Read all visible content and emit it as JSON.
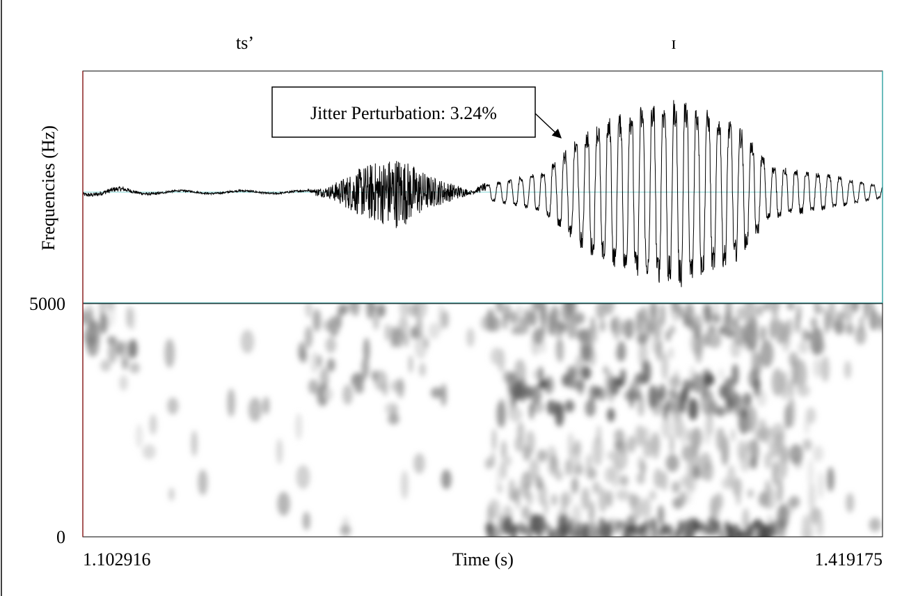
{
  "chart_data": {
    "type": "waveform_spectrogram",
    "segments": [
      {
        "label": "ts’",
        "time": 1.155
      },
      {
        "label": "ɪ",
        "time": 1.34
      }
    ],
    "annotation": {
      "text": "Jitter Perturbation: 3.24%",
      "arrow_target_time": 1.292
    },
    "ylabel": "Frequencies (Hz)",
    "xlabel": "Time (s)",
    "xlim": [
      1.102916,
      1.419175
    ],
    "x_start_label": "1.102916",
    "x_end_label": "1.419175",
    "ylim": [
      0,
      5000
    ],
    "y_ticks": [
      {
        "label": "5000",
        "value": 5000
      },
      {
        "label": "0",
        "value": 0
      }
    ],
    "waveform_envelope": [
      {
        "t": 1.1029,
        "amp": 0.04
      },
      {
        "t": 1.118,
        "amp": 0.05
      },
      {
        "t": 1.125,
        "amp": 0.03
      },
      {
        "t": 1.14,
        "amp": 0.02
      },
      {
        "t": 1.19,
        "amp": 0.02
      },
      {
        "t": 1.2,
        "amp": 0.05
      },
      {
        "t": 1.215,
        "amp": 0.25
      },
      {
        "t": 1.228,
        "amp": 0.33
      },
      {
        "t": 1.24,
        "amp": 0.15
      },
      {
        "t": 1.255,
        "amp": 0.03
      },
      {
        "t": 1.262,
        "amp": 0.08
      },
      {
        "t": 1.285,
        "amp": 0.22
      },
      {
        "t": 1.302,
        "amp": 0.65
      },
      {
        "t": 1.318,
        "amp": 0.88
      },
      {
        "t": 1.34,
        "amp": 1.0
      },
      {
        "t": 1.362,
        "amp": 0.72
      },
      {
        "t": 1.375,
        "amp": 0.28
      },
      {
        "t": 1.4,
        "amp": 0.18
      },
      {
        "t": 1.4192,
        "amp": 0.06
      }
    ],
    "formant_bands": [
      {
        "t0": 1.1029,
        "t1": 1.123,
        "f0": 3500,
        "f1": 5000,
        "intensity": 0.55
      },
      {
        "t0": 1.188,
        "t1": 1.24,
        "f0": 3000,
        "f1": 5000,
        "intensity": 0.5
      },
      {
        "t0": 1.262,
        "t1": 1.38,
        "f0": 0,
        "f1": 300,
        "intensity": 0.9
      },
      {
        "t0": 1.27,
        "t1": 1.37,
        "f0": 2600,
        "f1": 3600,
        "intensity": 0.8
      },
      {
        "t0": 1.262,
        "t1": 1.419,
        "f0": 4300,
        "f1": 5000,
        "intensity": 0.5
      },
      {
        "t0": 1.262,
        "t1": 1.38,
        "f0": 600,
        "f1": 2400,
        "intensity": 0.3
      }
    ]
  }
}
